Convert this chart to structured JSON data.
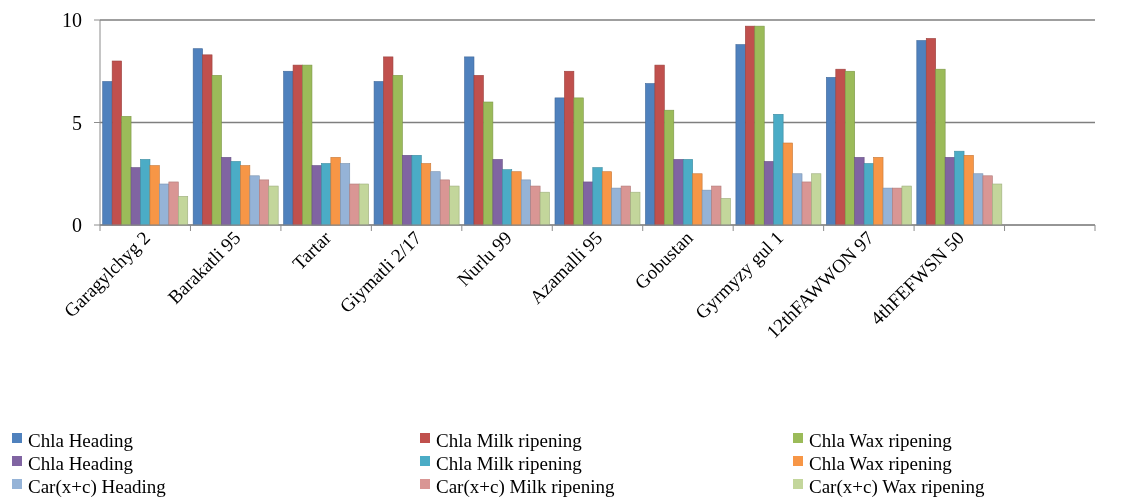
{
  "chart_data": {
    "type": "bar",
    "categories": [
      "Garagylchyg 2",
      "Barakatli 95",
      "Tartar",
      "Giymatli 2/17",
      "Nurlu 99",
      "Azamalli 95",
      "Gobustan",
      "Gyrmyzy gul 1",
      "12thFAWWON 97",
      "4thFEFWSN 50",
      null
    ],
    "series": [
      {
        "name": "Chla Heading",
        "color": "#4f81bd",
        "values": [
          7.0,
          8.6,
          7.5,
          7.0,
          8.2,
          6.2,
          6.9,
          8.8,
          7.2,
          9.0,
          null
        ]
      },
      {
        "name": "Chla Milk ripening",
        "color": "#c0504d",
        "values": [
          8.0,
          8.3,
          7.8,
          8.2,
          7.3,
          7.5,
          7.8,
          9.7,
          7.6,
          9.1,
          null
        ]
      },
      {
        "name": "Chla Wax ripening",
        "color": "#9bbb59",
        "values": [
          5.3,
          7.3,
          7.8,
          7.3,
          6.0,
          6.2,
          5.6,
          9.7,
          7.5,
          7.6,
          null
        ]
      },
      {
        "name": "Chla Heading",
        "color": "#8064a2",
        "values": [
          2.8,
          3.3,
          2.9,
          3.4,
          3.2,
          2.1,
          3.2,
          3.1,
          3.3,
          3.3,
          null
        ]
      },
      {
        "name": "Chla Milk ripening",
        "color": "#4bacc6",
        "values": [
          3.2,
          3.1,
          3.0,
          3.4,
          2.7,
          2.8,
          3.2,
          5.4,
          3.0,
          3.6,
          null
        ]
      },
      {
        "name": "Chla Wax ripening",
        "color": "#f79646",
        "values": [
          2.9,
          2.9,
          3.3,
          3.0,
          2.6,
          2.6,
          2.5,
          4.0,
          3.3,
          3.4,
          null
        ]
      },
      {
        "name": "Car(x+c) Heading",
        "color": "#95b3d7",
        "values": [
          2.0,
          2.4,
          3.0,
          2.6,
          2.2,
          1.8,
          1.7,
          2.5,
          1.8,
          2.5,
          null
        ]
      },
      {
        "name": "Car(x+c) Milk ripening",
        "color": "#d99694",
        "values": [
          2.1,
          2.2,
          2.0,
          2.2,
          1.9,
          1.9,
          1.9,
          2.1,
          1.8,
          2.4,
          null
        ]
      },
      {
        "name": "Car(x+c) Wax ripening",
        "color": "#c3d69b",
        "values": [
          1.4,
          1.9,
          2.0,
          1.9,
          1.6,
          1.6,
          1.3,
          2.5,
          1.9,
          2.0,
          null
        ]
      }
    ],
    "ylim": [
      0,
      10
    ],
    "yticks": [
      0,
      5,
      10
    ],
    "grid": "y",
    "legend": "bottom"
  }
}
